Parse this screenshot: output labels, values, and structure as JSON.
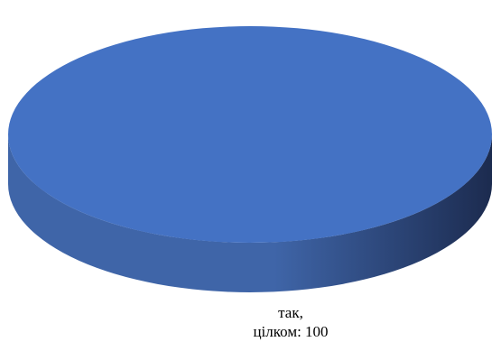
{
  "chart_data": {
    "type": "pie",
    "style": "3d",
    "title": "",
    "slices": [
      {
        "label_line1": "так,",
        "label_line2": "цілком",
        "value": 100,
        "value_text": "цілком: 100",
        "color": "#4472C4",
        "side_color_light": "#3F65A8",
        "side_color_dark": "#1C2B4F"
      }
    ],
    "legend": "none",
    "data_labels": "below"
  }
}
